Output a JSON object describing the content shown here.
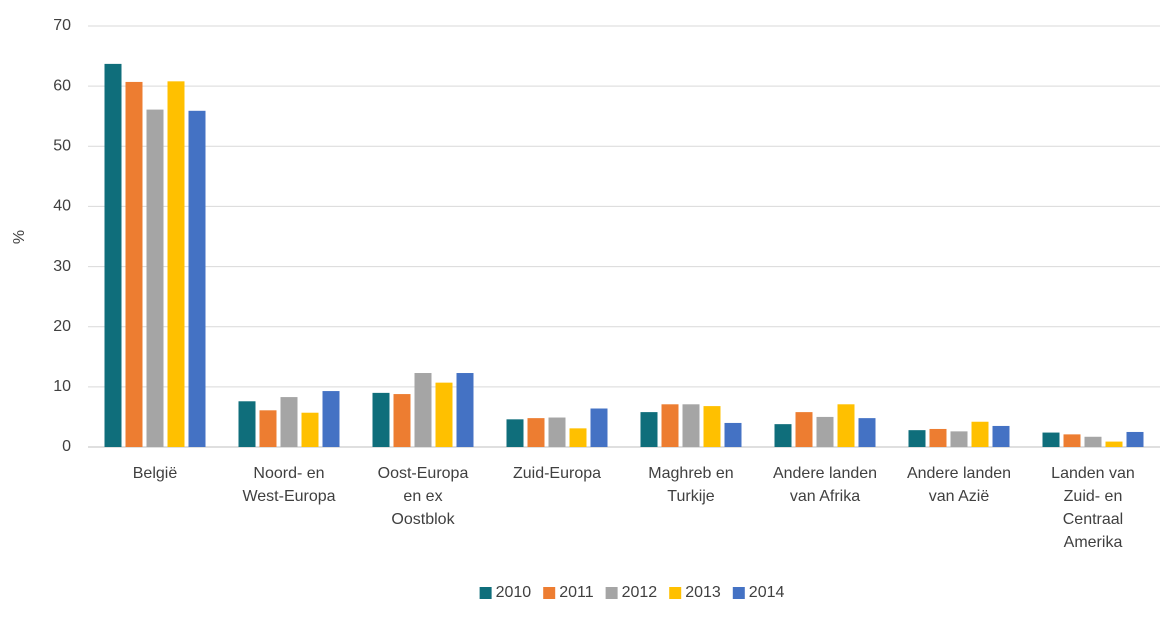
{
  "chart_data": {
    "type": "bar",
    "ylabel": "%",
    "categories": [
      "België",
      "Noord- en West-Europa",
      "Oost-Europa en ex Oostblok",
      "Zuid-Europa",
      "Maghreb en Turkije",
      "Andere landen van Afrika",
      "Andere landen van Azië",
      "Landen van Zuid- en Centraal Amerika"
    ],
    "series": [
      {
        "name": "2010",
        "color": "#0f6e7b",
        "values": [
          63.7,
          7.6,
          9.0,
          4.6,
          5.8,
          3.8,
          2.8,
          2.4
        ]
      },
      {
        "name": "2011",
        "color": "#ed7d31",
        "values": [
          60.7,
          6.1,
          8.8,
          4.8,
          7.1,
          5.8,
          3.0,
          2.1
        ]
      },
      {
        "name": "2012",
        "color": "#a5a5a5",
        "values": [
          56.1,
          8.3,
          12.3,
          4.9,
          7.1,
          5.0,
          2.6,
          1.7
        ]
      },
      {
        "name": "2013",
        "color": "#ffc000",
        "values": [
          60.8,
          5.7,
          10.7,
          3.1,
          6.8,
          7.1,
          4.2,
          0.9
        ]
      },
      {
        "name": "2014",
        "color": "#4472c4",
        "values": [
          55.9,
          9.3,
          12.3,
          6.4,
          4.0,
          4.8,
          3.5,
          2.5
        ]
      }
    ],
    "ylim": [
      0,
      70
    ],
    "yticks": [
      0,
      10,
      20,
      30,
      40,
      50,
      60,
      70
    ],
    "grid": true,
    "legend": "bottom"
  }
}
